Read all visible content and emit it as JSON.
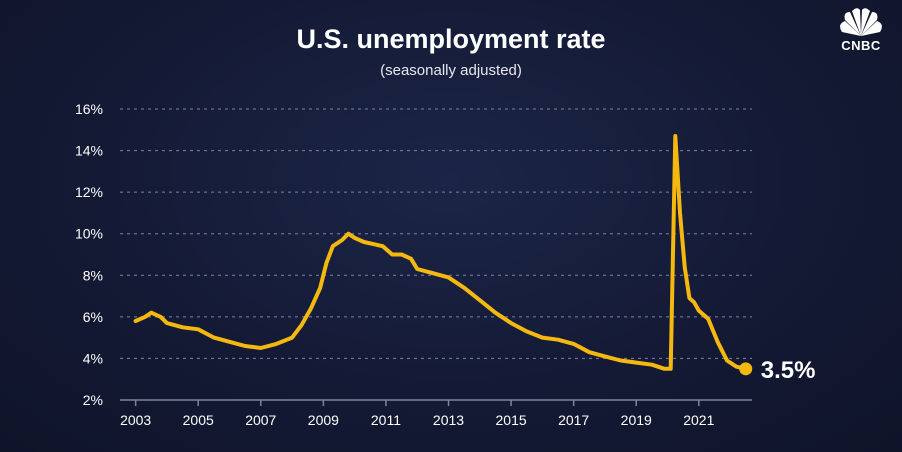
{
  "brand": {
    "logo_text": "CNBC"
  },
  "colors": {
    "line": "#f5b80f",
    "grid": "#7d849c",
    "background": "#141a35",
    "text": "#ffffff"
  },
  "chart_data": {
    "type": "line",
    "title": "U.S. unemployment rate",
    "subtitle": "(seasonally adjusted)",
    "xlabel": "",
    "ylabel": "",
    "xlim": [
      2002.5,
      2022.7
    ],
    "ylim": [
      2,
      16
    ],
    "yticks": [
      2,
      4,
      6,
      8,
      10,
      12,
      14,
      16
    ],
    "ytick_labels": [
      "2%",
      "4%",
      "6%",
      "8%",
      "10%",
      "12%",
      "14%",
      "16%"
    ],
    "xticks": [
      2003,
      2005,
      2007,
      2009,
      2011,
      2013,
      2015,
      2017,
      2019,
      2021
    ],
    "xtick_labels": [
      "2003",
      "2005",
      "2007",
      "2009",
      "2011",
      "2013",
      "2015",
      "2017",
      "2019",
      "2021"
    ],
    "grid": true,
    "final_label": "3.5%",
    "series": [
      {
        "x": [
          2003.0,
          2003.3,
          2003.5,
          2003.8,
          2004.0,
          2004.5,
          2005.0,
          2005.5,
          2006.0,
          2006.5,
          2007.0,
          2007.5,
          2008.0,
          2008.3,
          2008.6,
          2008.9,
          2009.1,
          2009.3,
          2009.6,
          2009.8,
          2010.0,
          2010.3,
          2010.6,
          2010.9,
          2011.2,
          2011.5,
          2011.8,
          2012.0,
          2012.5,
          2013.0,
          2013.5,
          2014.0,
          2014.5,
          2015.0,
          2015.5,
          2016.0,
          2016.5,
          2017.0,
          2017.5,
          2018.0,
          2018.5,
          2019.0,
          2019.5,
          2019.9,
          2020.1,
          2020.25,
          2020.4,
          2020.55,
          2020.7,
          2020.85,
          2021.0,
          2021.3,
          2021.6,
          2021.9,
          2022.2,
          2022.5
        ],
        "y": [
          5.8,
          6.0,
          6.2,
          6.0,
          5.7,
          5.5,
          5.4,
          5.0,
          4.8,
          4.6,
          4.5,
          4.7,
          5.0,
          5.6,
          6.4,
          7.4,
          8.6,
          9.4,
          9.7,
          10.0,
          9.8,
          9.6,
          9.5,
          9.4,
          9.0,
          9.0,
          8.8,
          8.3,
          8.1,
          7.9,
          7.4,
          6.8,
          6.2,
          5.7,
          5.3,
          5.0,
          4.9,
          4.7,
          4.3,
          4.1,
          3.9,
          3.8,
          3.7,
          3.5,
          3.5,
          14.7,
          11.0,
          8.4,
          6.9,
          6.7,
          6.3,
          5.9,
          4.8,
          3.9,
          3.6,
          3.5
        ]
      }
    ]
  }
}
